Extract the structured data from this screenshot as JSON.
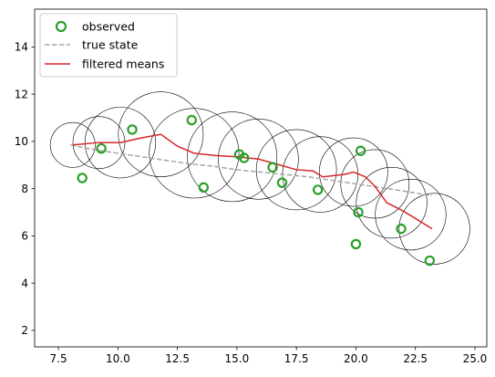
{
  "chart_data": {
    "type": "scatter",
    "title": "",
    "xlabel": "",
    "ylabel": "",
    "xlim": [
      6.5,
      25.5
    ],
    "ylim": [
      1.3,
      15.6
    ],
    "x_ticks": [
      7.5,
      10.0,
      12.5,
      15.0,
      17.5,
      20.0,
      22.5,
      25.0
    ],
    "x_tick_labels": [
      "7.5",
      "10.0",
      "12.5",
      "15.0",
      "17.5",
      "20.0",
      "22.5",
      "25.0"
    ],
    "y_ticks": [
      2,
      4,
      6,
      8,
      10,
      12,
      14
    ],
    "y_tick_labels": [
      "2",
      "4",
      "6",
      "8",
      "10",
      "12",
      "14"
    ],
    "grid": false,
    "legend_position": "upper-left",
    "legend": [
      "observed",
      "true state",
      "filtered means"
    ],
    "colors": {
      "observed": "#2ca02c",
      "true_state": "#a6a6a6",
      "filtered": "#d62728",
      "uncertainty": "#000000"
    },
    "series": [
      {
        "name": "observed",
        "kind": "scatter",
        "points": [
          [
            8.5,
            8.45
          ],
          [
            9.3,
            9.7
          ],
          [
            10.6,
            10.5
          ],
          [
            13.1,
            10.9
          ],
          [
            13.6,
            8.05
          ],
          [
            15.1,
            9.45
          ],
          [
            15.3,
            9.3
          ],
          [
            16.5,
            8.9
          ],
          [
            16.9,
            8.25
          ],
          [
            18.4,
            7.95
          ],
          [
            20.0,
            5.65
          ],
          [
            20.1,
            7.0
          ],
          [
            20.2,
            9.6
          ],
          [
            21.9,
            6.3
          ],
          [
            23.1,
            4.95
          ]
        ]
      },
      {
        "name": "true state",
        "kind": "line-dashed",
        "points": [
          [
            8.0,
            9.85
          ],
          [
            9.0,
            9.65
          ],
          [
            10.0,
            9.5
          ],
          [
            11.0,
            9.35
          ],
          [
            12.0,
            9.2
          ],
          [
            13.0,
            9.05
          ],
          [
            14.0,
            8.95
          ],
          [
            15.0,
            8.8
          ],
          [
            16.0,
            8.7
          ],
          [
            17.0,
            8.6
          ],
          [
            18.0,
            8.5
          ],
          [
            19.0,
            8.35
          ],
          [
            20.0,
            8.2
          ],
          [
            21.0,
            8.05
          ],
          [
            22.0,
            7.9
          ],
          [
            23.2,
            7.7
          ]
        ]
      },
      {
        "name": "filtered means",
        "kind": "line",
        "points": [
          [
            8.1,
            9.85
          ],
          [
            9.2,
            9.95
          ],
          [
            10.1,
            9.95
          ],
          [
            11.0,
            10.15
          ],
          [
            11.8,
            10.3
          ],
          [
            12.5,
            9.8
          ],
          [
            13.2,
            9.5
          ],
          [
            14.1,
            9.4
          ],
          [
            15.0,
            9.35
          ],
          [
            15.9,
            9.25
          ],
          [
            16.8,
            9.0
          ],
          [
            17.5,
            8.8
          ],
          [
            18.2,
            8.75
          ],
          [
            18.6,
            8.5
          ],
          [
            19.5,
            8.6
          ],
          [
            19.9,
            8.7
          ],
          [
            20.4,
            8.5
          ],
          [
            20.8,
            8.1
          ],
          [
            21.3,
            7.4
          ],
          [
            21.9,
            7.1
          ],
          [
            22.4,
            6.8
          ],
          [
            23.2,
            6.3
          ]
        ]
      }
    ],
    "uncertainty_circles": [
      [
        8.1,
        9.85,
        0.95
      ],
      [
        9.2,
        9.95,
        1.1
      ],
      [
        10.1,
        9.95,
        1.5
      ],
      [
        11.8,
        10.3,
        1.8
      ],
      [
        13.2,
        9.5,
        1.9
      ],
      [
        14.8,
        9.35,
        1.9
      ],
      [
        15.9,
        9.25,
        1.7
      ],
      [
        17.5,
        8.8,
        1.7
      ],
      [
        18.5,
        8.6,
        1.6
      ],
      [
        19.9,
        8.7,
        1.45
      ],
      [
        20.8,
        8.2,
        1.45
      ],
      [
        21.5,
        7.4,
        1.5
      ],
      [
        22.3,
        6.9,
        1.5
      ],
      [
        23.3,
        6.3,
        1.5
      ]
    ]
  }
}
